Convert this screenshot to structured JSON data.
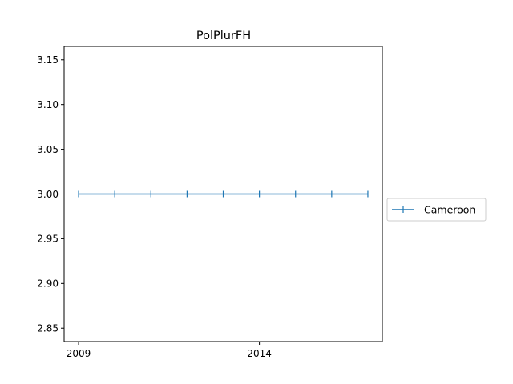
{
  "chart_data": {
    "type": "line",
    "title": "PolPlurFH",
    "xlabel": "",
    "ylabel": "",
    "x": [
      2009,
      2010,
      2011,
      2012,
      2013,
      2014,
      2015,
      2016,
      2017
    ],
    "series": [
      {
        "name": "Cameroon",
        "values": [
          3,
          3,
          3,
          3,
          3,
          3,
          3,
          3,
          3
        ],
        "color": "#1f77b4",
        "marker": "vertical-line"
      }
    ],
    "xlim": [
      2008.6,
      2017.4
    ],
    "ylim": [
      2.835,
      3.165
    ],
    "xticks": [
      2009,
      2014
    ],
    "xtick_labels": [
      "2009",
      "2014"
    ],
    "yticks": [
      2.85,
      2.9,
      2.95,
      3.0,
      3.05,
      3.1,
      3.15
    ],
    "ytick_labels": [
      "2.85",
      "2.90",
      "2.95",
      "3.00",
      "3.05",
      "3.10",
      "3.15"
    ],
    "grid": false,
    "legend_position": "outside-right"
  }
}
